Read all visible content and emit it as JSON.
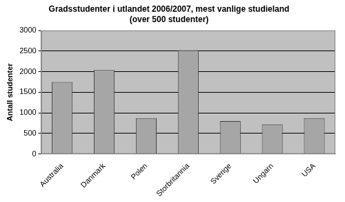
{
  "chart_data": {
    "type": "bar",
    "title": [
      "Gradsstudenter i utlandet 2006/2007, mest vanlige studieland",
      "(over 500 studenter)"
    ],
    "y_label": "Antall studenter",
    "categories": [
      "Australia",
      "Danmark",
      "Polen",
      "Storbritannia",
      "Sverige",
      "Ungarn",
      "USA"
    ],
    "values": [
      1750,
      2040,
      870,
      2520,
      800,
      720,
      870
    ],
    "color": "#a6a6a6",
    "ylim": [
      0,
      3000
    ],
    "yticks": [
      0,
      500,
      1000,
      1500,
      2000,
      2500,
      3000
    ],
    "grid": true
  }
}
